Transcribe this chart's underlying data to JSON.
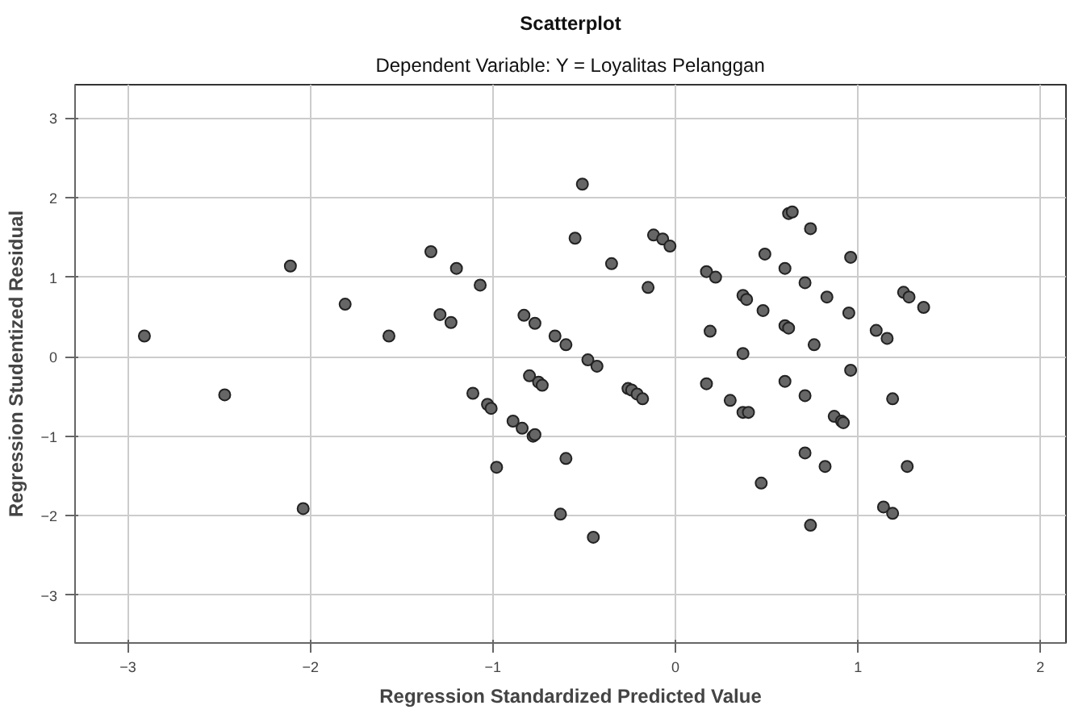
{
  "chart_data": {
    "type": "scatter",
    "title": "Scatterplot",
    "subtitle": "Dependent Variable: Y = Loyalitas Pelanggan",
    "xlabel": "Regression Standardized Predicted Value",
    "ylabel": "Regression Studentized Residual",
    "xlim": [
      -3.29,
      2.14
    ],
    "ylim": [
      -3.6,
      3.42
    ],
    "xticks": [
      -3,
      -2,
      -1,
      0,
      1,
      2
    ],
    "yticks": [
      -3,
      -2,
      -1,
      0,
      1,
      2,
      3
    ],
    "grid": true,
    "marker": "circle",
    "series": [
      {
        "color": "#666666",
        "x": [
          -2.91,
          -2.47,
          -2.11,
          -1.81,
          -1.57,
          -1.34,
          -1.29,
          -1.23,
          -1.2,
          -1.07,
          -0.83,
          -0.77,
          -0.66,
          -0.6,
          -0.55,
          -0.51,
          -0.8,
          -0.75,
          -0.73,
          -1.11,
          -1.03,
          -1.01,
          -0.35,
          -0.15,
          -0.12,
          -0.07,
          -0.03,
          0.17,
          0.22,
          0.37,
          0.39,
          0.48,
          0.49,
          0.6,
          0.62,
          0.64,
          0.74,
          0.71,
          0.83,
          0.96,
          0.95,
          0.19,
          0.37,
          0.6,
          0.62,
          0.76,
          1.1,
          1.16,
          1.25,
          1.28,
          1.36,
          -0.48,
          -0.43,
          -0.26,
          -0.24,
          -0.21,
          -0.18,
          0.17,
          0.3,
          0.6,
          0.71,
          0.96,
          1.19,
          -0.89,
          -0.84,
          -0.78,
          -0.77,
          -0.98,
          -0.6,
          -0.63,
          -2.04,
          0.37,
          0.4,
          0.87,
          0.91,
          0.92,
          0.71,
          0.82,
          0.47,
          1.27,
          1.14,
          1.19,
          0.74,
          -0.45
        ],
        "values": [
          0.26,
          -0.48,
          1.14,
          0.66,
          0.26,
          1.32,
          0.53,
          0.43,
          1.11,
          0.9,
          0.52,
          0.42,
          0.26,
          0.15,
          1.49,
          2.17,
          -0.24,
          -0.32,
          -0.36,
          -0.46,
          -0.6,
          -0.65,
          1.17,
          0.87,
          1.53,
          1.48,
          1.39,
          1.07,
          1.0,
          0.77,
          0.72,
          0.58,
          1.29,
          1.11,
          1.8,
          1.82,
          1.61,
          0.93,
          0.75,
          1.25,
          0.55,
          0.32,
          0.04,
          0.39,
          0.36,
          0.15,
          0.33,
          0.23,
          0.81,
          0.75,
          0.62,
          -0.04,
          -0.12,
          -0.4,
          -0.42,
          -0.47,
          -0.53,
          -0.34,
          -0.55,
          -0.31,
          -0.49,
          -0.17,
          -0.53,
          -0.81,
          -0.9,
          -1.0,
          -0.98,
          -1.39,
          -1.28,
          -1.98,
          -1.91,
          -0.7,
          -0.7,
          -0.75,
          -0.81,
          -0.83,
          -1.21,
          -1.38,
          -1.59,
          -1.38,
          -1.89,
          -1.97,
          -2.12,
          -2.27
        ]
      }
    ]
  }
}
